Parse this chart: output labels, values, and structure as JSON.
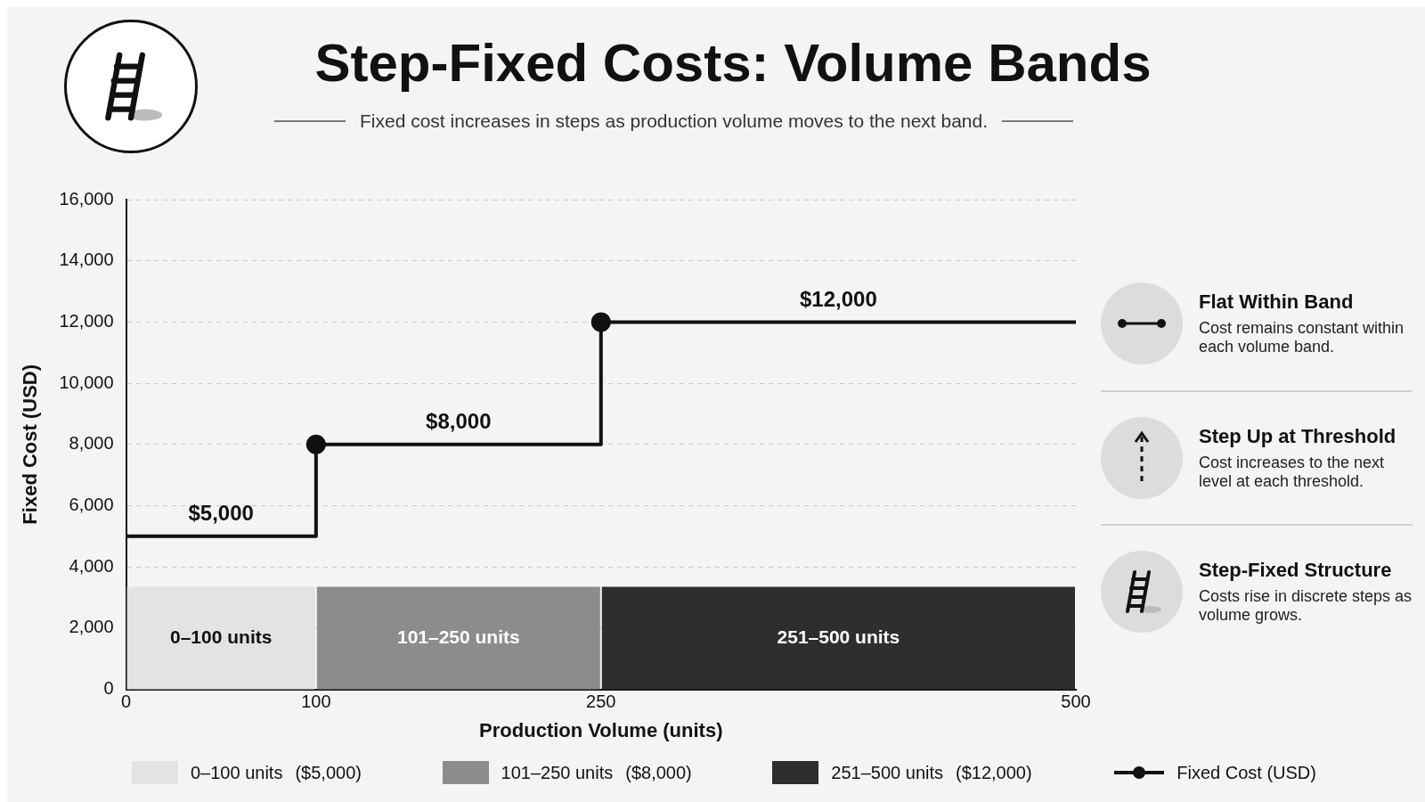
{
  "chart_data": {
    "type": "step",
    "title": "Step-Fixed Costs: Volume Bands",
    "subtitle": "Fixed cost increases in steps as production volume moves to the next band.",
    "xlabel": "Production Volume (units)",
    "ylabel": "Fixed Cost (USD)",
    "x": [
      0,
      100,
      250,
      500
    ],
    "series": [
      {
        "name": "Fixed Cost (USD)",
        "color": "#111111",
        "values": [
          5000,
          8000,
          12000,
          12000
        ]
      }
    ],
    "xlim": [
      0,
      500
    ],
    "xticks": [
      0,
      100,
      250,
      500
    ],
    "ylim": [
      0,
      16000
    ],
    "yticks": [
      0,
      {
        "value": 2000,
        "label": "2,000"
      },
      {
        "value": 4000,
        "label": "4,000"
      },
      {
        "value": 6000,
        "label": "6,000"
      },
      {
        "value": 8000,
        "label": "8,000"
      },
      {
        "value": 10000,
        "label": "10,000"
      },
      {
        "value": 12000,
        "label": "12,000"
      },
      {
        "value": 14000,
        "label": "14,000"
      },
      {
        "value": 16000,
        "label": "16,000"
      }
    ],
    "grid": "y",
    "marker": "circle",
    "legend": "bottom",
    "bands": [
      {
        "axis": "x",
        "from": 0,
        "to": 100,
        "label": "0–100 units",
        "color": "#e3e3e3"
      },
      {
        "axis": "x",
        "from": 100,
        "to": 250,
        "label": "101–250 units",
        "color": "#8c8c8c"
      },
      {
        "axis": "x",
        "from": 250,
        "to": 500,
        "label": "251–500 units",
        "color": "#2e2e2e"
      }
    ],
    "annotations": [
      {
        "text": "$5,000",
        "x": 50,
        "y": 5000
      },
      {
        "text": "$8,000",
        "x": 175,
        "y": 8000
      },
      {
        "text": "$12,000",
        "x": 375,
        "y": 12000
      },
      "Flat Within Band",
      "Cost remains constant within each volume band.",
      "Step Up at Threshold",
      "Cost increases to the next level at each threshold.",
      "Step-Fixed Structure",
      "Costs rise in discrete steps as volume grows.",
      "($5,000)",
      "($8,000)",
      "($12,000)"
    ]
  }
}
